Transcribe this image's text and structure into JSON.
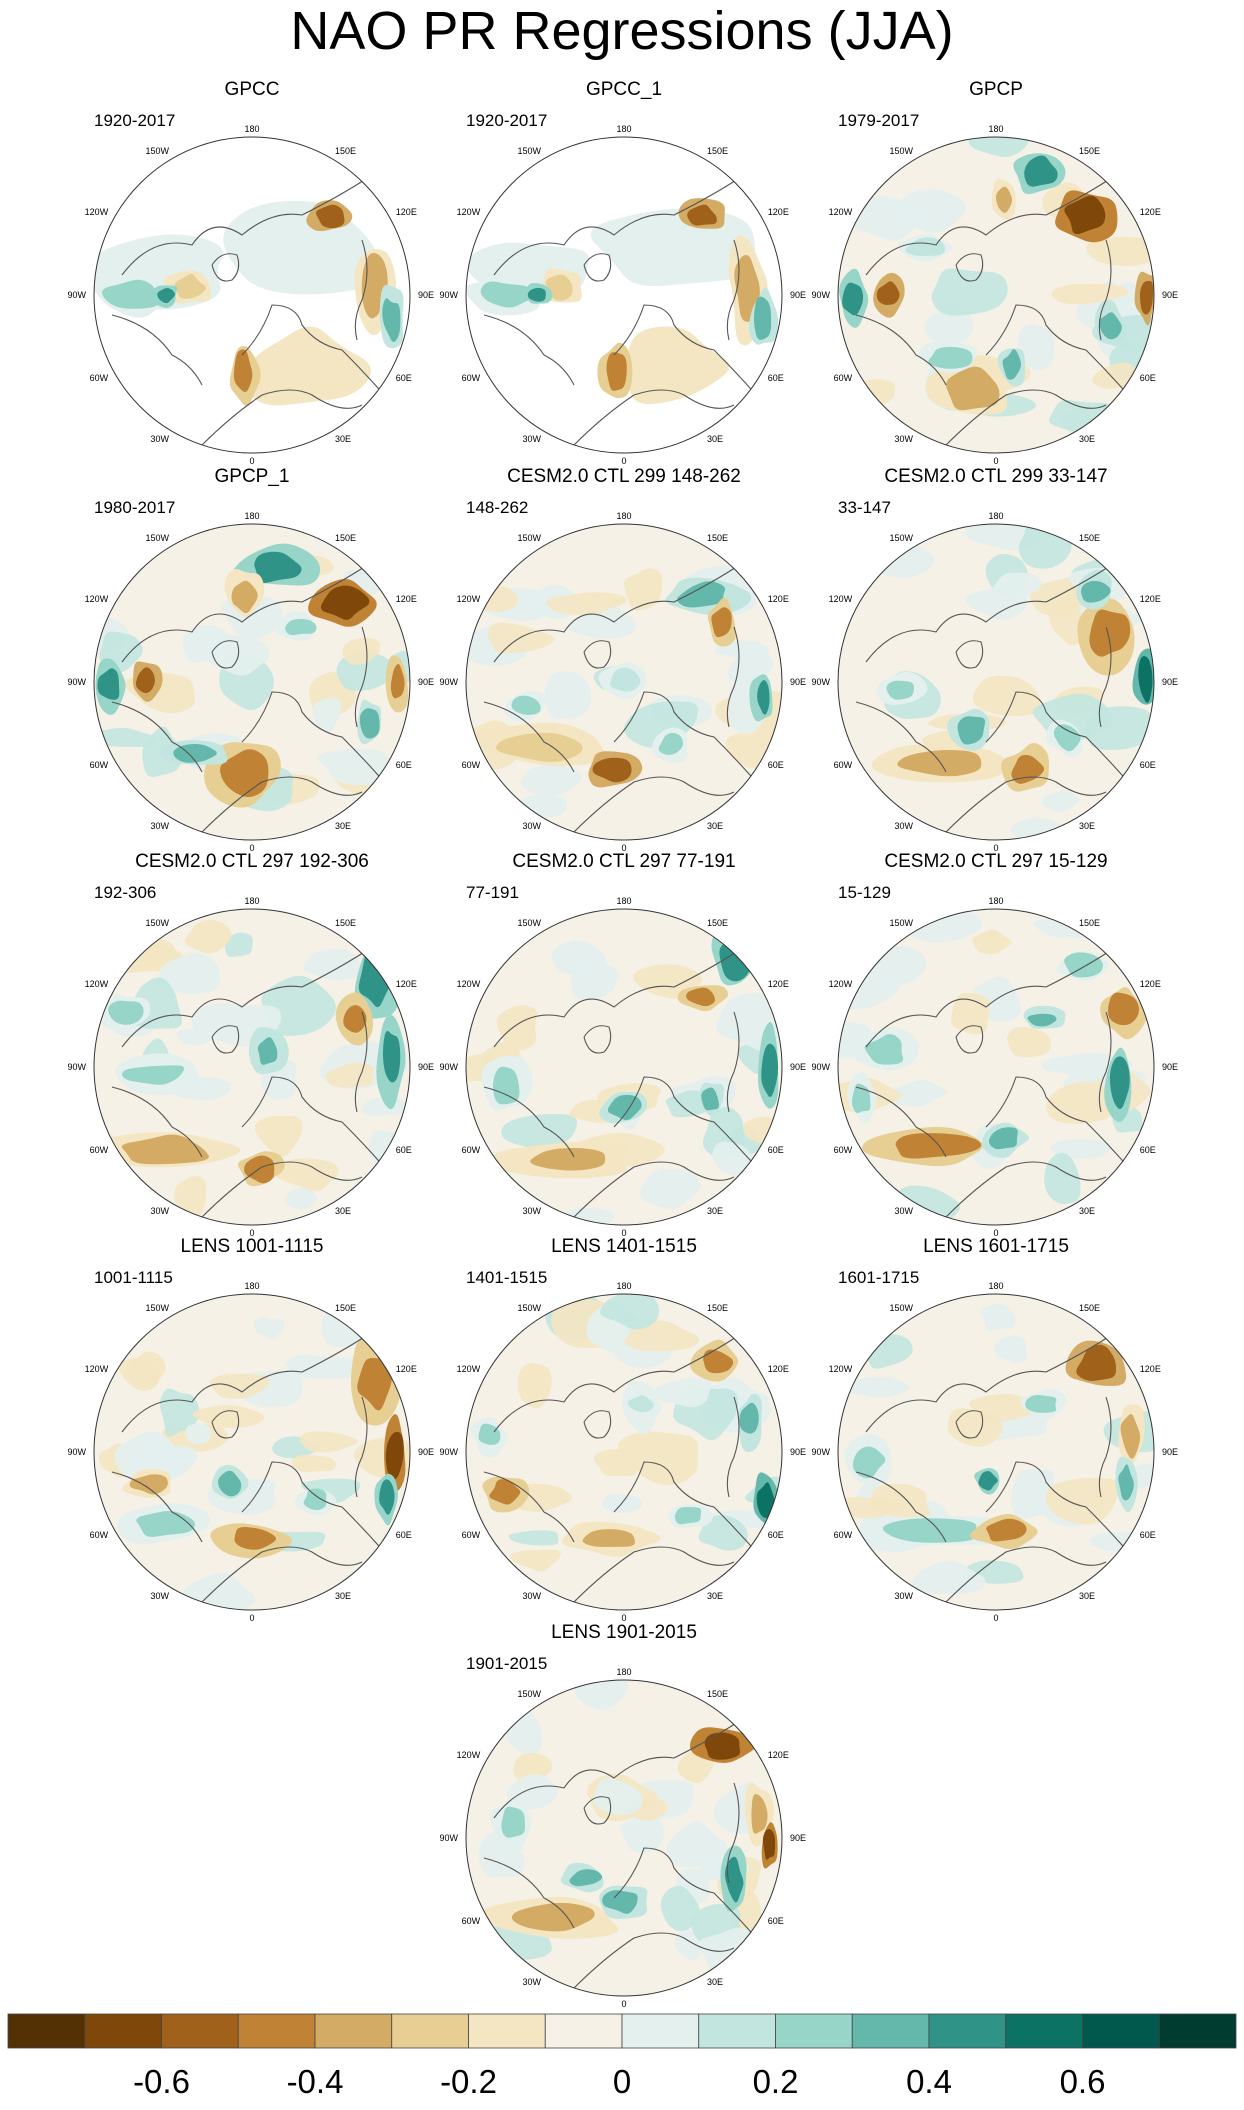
{
  "title": "NAO PR Regressions (JJA)",
  "chart_data": {
    "type": "heatmap",
    "projection": "north polar stereographic",
    "title": "NAO PR Regressions (JJA)",
    "longitude_labels": [
      "180",
      "150E",
      "120E",
      "90E",
      "60E",
      "30E",
      "0",
      "30W",
      "60W",
      "90W",
      "120W",
      "150W"
    ],
    "panels": [
      {
        "title": "GPCC",
        "period": "1920-2017",
        "missing_data_region": true
      },
      {
        "title": "GPCC_1",
        "period": "1920-2017",
        "missing_data_region": true
      },
      {
        "title": "GPCP",
        "period": "1979-2017",
        "missing_data_region": false
      },
      {
        "title": "GPCP_1",
        "period": "1980-2017",
        "missing_data_region": false
      },
      {
        "title": "CESM2.0 CTL 299 148-262",
        "period": "148-262",
        "missing_data_region": false
      },
      {
        "title": "CESM2.0 CTL 299 33-147",
        "period": "33-147",
        "missing_data_region": false
      },
      {
        "title": "CESM2.0 CTL 297 192-306",
        "period": "192-306",
        "missing_data_region": false
      },
      {
        "title": "CESM2.0 CTL 297 77-191",
        "period": "77-191",
        "missing_data_region": false
      },
      {
        "title": "CESM2.0 CTL 297 15-129",
        "period": "15-129",
        "missing_data_region": false
      },
      {
        "title": "LENS 1001-1115",
        "period": "1001-1115",
        "missing_data_region": false
      },
      {
        "title": "LENS 1401-1515",
        "period": "1401-1515",
        "missing_data_region": false
      },
      {
        "title": "LENS 1601-1715",
        "period": "1601-1715",
        "missing_data_region": false
      },
      {
        "title": "LENS 1901-2015",
        "period": "1901-2015",
        "missing_data_region": false
      }
    ],
    "colorbar": {
      "levels": [
        -0.7,
        -0.6,
        -0.5,
        -0.4,
        -0.3,
        -0.2,
        -0.1,
        0,
        0.1,
        0.2,
        0.3,
        0.4,
        0.5,
        0.6,
        0.7
      ],
      "colors": [
        "#543005",
        "#7f4709",
        "#a0621b",
        "#c08235",
        "#d4ab64",
        "#e7cf94",
        "#f4e6c2",
        "#f5f1e6",
        "#e3f0ee",
        "#c2e6df",
        "#96d5c8",
        "#63b8ab",
        "#2f9487",
        "#0c7264",
        "#01594e",
        "#003c30"
      ],
      "tick_labels": [
        "-0.6",
        "-0.4",
        "-0.2",
        "0",
        "0.2",
        "0.4",
        "0.6"
      ],
      "tick_values": [
        -0.6,
        -0.4,
        -0.2,
        0,
        0.2,
        0.4,
        0.6
      ]
    }
  }
}
